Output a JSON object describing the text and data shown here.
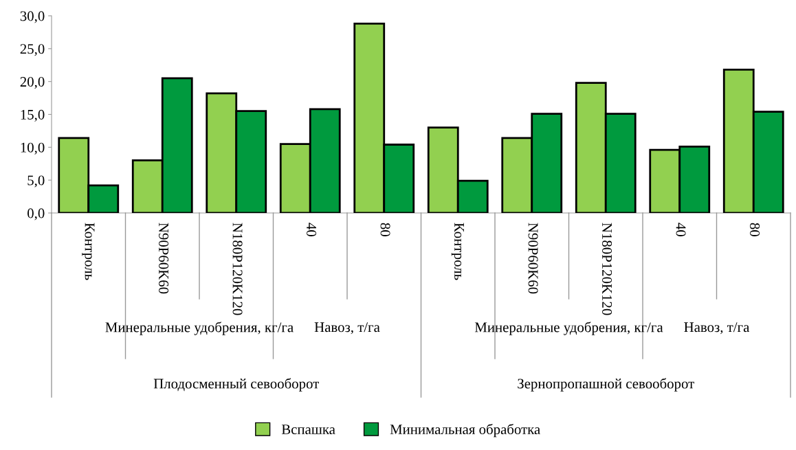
{
  "chart_data": {
    "type": "bar",
    "categories": [
      "Контроль",
      "N90P60K60",
      "N180P120K120",
      "40",
      "80",
      "Контроль",
      "N90P60K60",
      "N180P120K120",
      "40",
      "80"
    ],
    "series": [
      {
        "name": "Вспашка",
        "color": "#92d050",
        "values": [
          11.4,
          8.0,
          18.2,
          10.5,
          28.8,
          13.0,
          11.4,
          19.8,
          9.6,
          21.8
        ]
      },
      {
        "name": "Минимальная обработка",
        "color": "#009a3e",
        "values": [
          4.2,
          20.5,
          15.5,
          15.8,
          10.4,
          4.9,
          15.1,
          15.1,
          10.1,
          15.4
        ]
      }
    ],
    "annotations": [
      "Минеральные удобрения, кг/га",
      "Навоз, т/га",
      "Минеральные удобрения, кг/га",
      "Навоз, т/га",
      "Плодосменный севооборот",
      "Зернопропашной севооборот"
    ],
    "ylim": [
      0,
      30
    ],
    "yticks": [
      {
        "value": 0,
        "label": "0,0"
      },
      {
        "value": 5,
        "label": "5,0"
      },
      {
        "value": 10,
        "label": "10,0"
      },
      {
        "value": 15,
        "label": "15,0"
      },
      {
        "value": 20,
        "label": "20,0"
      },
      {
        "value": 25,
        "label": "25,0"
      },
      {
        "value": 30,
        "label": "30,0"
      }
    ],
    "grid": false,
    "legend": "bottom"
  }
}
